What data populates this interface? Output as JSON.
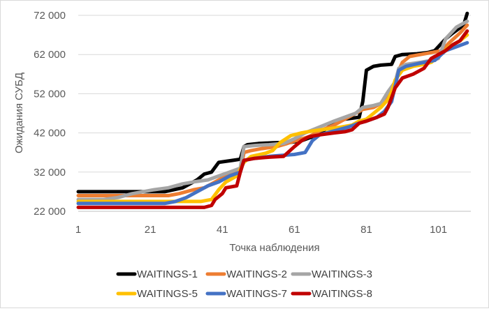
{
  "chart_data": {
    "type": "line",
    "title": "",
    "xlabel": "Точка наблюдения",
    "ylabel": "Ожидания СУБД",
    "ylim": [
      22000,
      72000
    ],
    "xlim": [
      1,
      110
    ],
    "yticks": [
      {
        "value": 22000,
        "label": "22 000"
      },
      {
        "value": 32000,
        "label": "32 000"
      },
      {
        "value": 42000,
        "label": "42 000"
      },
      {
        "value": 52000,
        "label": "52 000"
      },
      {
        "value": 62000,
        "label": "62 000"
      },
      {
        "value": 72000,
        "label": "72 000"
      }
    ],
    "xticks": [
      {
        "value": 1,
        "label": "1"
      },
      {
        "value": 21,
        "label": "21"
      },
      {
        "value": 41,
        "label": "41"
      },
      {
        "value": 61,
        "label": "61"
      },
      {
        "value": 81,
        "label": "81"
      },
      {
        "value": 101,
        "label": "101"
      }
    ],
    "grid": "horizontal",
    "legend_position": "bottom",
    "series": [
      {
        "name": "WAITINGS-1",
        "color": "#000000",
        "points": [
          [
            1,
            27000
          ],
          [
            25,
            27000
          ],
          [
            28,
            27600
          ],
          [
            30,
            28000
          ],
          [
            34,
            30000
          ],
          [
            36,
            31500
          ],
          [
            38,
            32000
          ],
          [
            40,
            34500
          ],
          [
            44,
            35000
          ],
          [
            46,
            35300
          ],
          [
            47,
            38500
          ],
          [
            48,
            39000
          ],
          [
            51,
            39300
          ],
          [
            55,
            39500
          ],
          [
            60,
            39600
          ],
          [
            63,
            40000
          ],
          [
            66,
            41000
          ],
          [
            69,
            42500
          ],
          [
            72,
            44500
          ],
          [
            75,
            45500
          ],
          [
            79,
            46000
          ],
          [
            80,
            50000
          ],
          [
            81,
            58000
          ],
          [
            83,
            59000
          ],
          [
            85,
            59300
          ],
          [
            88,
            59500
          ],
          [
            89,
            61500
          ],
          [
            91,
            62000
          ],
          [
            95,
            62200
          ],
          [
            98,
            62500
          ],
          [
            100,
            63000
          ],
          [
            103,
            66000
          ],
          [
            105,
            67500
          ],
          [
            108,
            69500
          ],
          [
            109,
            72500
          ]
        ]
      },
      {
        "name": "WAITINGS-2",
        "color": "#ED7D31",
        "points": [
          [
            1,
            26000
          ],
          [
            26,
            26000
          ],
          [
            29,
            26500
          ],
          [
            33,
            27500
          ],
          [
            36,
            28000
          ],
          [
            39,
            29500
          ],
          [
            42,
            31000
          ],
          [
            46,
            32000
          ],
          [
            47,
            37000
          ],
          [
            49,
            37500
          ],
          [
            52,
            38000
          ],
          [
            56,
            38500
          ],
          [
            59,
            39300
          ],
          [
            62,
            40200
          ],
          [
            65,
            41000
          ],
          [
            68,
            42500
          ],
          [
            72,
            44000
          ],
          [
            75,
            45500
          ],
          [
            78,
            47000
          ],
          [
            80,
            48000
          ],
          [
            83,
            48500
          ],
          [
            85,
            49500
          ],
          [
            87,
            52000
          ],
          [
            89,
            54500
          ],
          [
            90,
            58000
          ],
          [
            91,
            60000
          ],
          [
            93,
            61500
          ],
          [
            96,
            62000
          ],
          [
            99,
            62500
          ],
          [
            102,
            63000
          ],
          [
            104,
            65000
          ],
          [
            107,
            67500
          ],
          [
            109,
            69500
          ]
        ]
      },
      {
        "name": "WAITINGS-3",
        "color": "#A5A5A5",
        "points": [
          [
            1,
            25000
          ],
          [
            8,
            25000
          ],
          [
            12,
            25500
          ],
          [
            16,
            26500
          ],
          [
            19,
            27000
          ],
          [
            22,
            27500
          ],
          [
            26,
            28000
          ],
          [
            30,
            29000
          ],
          [
            33,
            29500
          ],
          [
            37,
            30000
          ],
          [
            40,
            31000
          ],
          [
            43,
            32000
          ],
          [
            46,
            33000
          ],
          [
            47,
            38500
          ],
          [
            50,
            38800
          ],
          [
            54,
            39000
          ],
          [
            58,
            39300
          ],
          [
            61,
            40500
          ],
          [
            64,
            42000
          ],
          [
            68,
            43500
          ],
          [
            72,
            45000
          ],
          [
            75,
            46000
          ],
          [
            78,
            47000
          ],
          [
            80,
            48500
          ],
          [
            83,
            49000
          ],
          [
            85,
            49500
          ],
          [
            87,
            52500
          ],
          [
            89,
            55000
          ],
          [
            90,
            58500
          ],
          [
            92,
            59500
          ],
          [
            96,
            60000
          ],
          [
            99,
            60500
          ],
          [
            101,
            61000
          ],
          [
            103,
            66000
          ],
          [
            106,
            69000
          ],
          [
            109,
            70500
          ]
        ]
      },
      {
        "name": "WAITINGS-5",
        "color": "#FFC000",
        "points": [
          [
            1,
            24500
          ],
          [
            35,
            24500
          ],
          [
            38,
            25000
          ],
          [
            40,
            27500
          ],
          [
            42,
            29500
          ],
          [
            45,
            31000
          ],
          [
            47,
            34500
          ],
          [
            49,
            36000
          ],
          [
            53,
            36800
          ],
          [
            55,
            37500
          ],
          [
            57,
            39500
          ],
          [
            60,
            41300
          ],
          [
            63,
            42000
          ],
          [
            66,
            42500
          ],
          [
            70,
            43000
          ],
          [
            74,
            43500
          ],
          [
            77,
            44000
          ],
          [
            79,
            45000
          ],
          [
            81,
            45500
          ],
          [
            83,
            47000
          ],
          [
            85,
            48500
          ],
          [
            87,
            50500
          ],
          [
            88,
            52500
          ],
          [
            89,
            55500
          ],
          [
            91,
            58000
          ],
          [
            94,
            59000
          ],
          [
            97,
            59500
          ],
          [
            99,
            60000
          ],
          [
            101,
            61500
          ],
          [
            104,
            64000
          ],
          [
            107,
            65500
          ],
          [
            109,
            67000
          ]
        ]
      },
      {
        "name": "WAITINGS-7",
        "color": "#4472C4",
        "points": [
          [
            1,
            24000
          ],
          [
            25,
            24000
          ],
          [
            28,
            24500
          ],
          [
            31,
            25500
          ],
          [
            34,
            27000
          ],
          [
            37,
            28500
          ],
          [
            40,
            29500
          ],
          [
            43,
            31000
          ],
          [
            46,
            32000
          ],
          [
            47,
            35000
          ],
          [
            50,
            35500
          ],
          [
            54,
            36000
          ],
          [
            58,
            36300
          ],
          [
            61,
            36500
          ],
          [
            64,
            37000
          ],
          [
            66,
            40000
          ],
          [
            68,
            41500
          ],
          [
            72,
            42500
          ],
          [
            76,
            43500
          ],
          [
            79,
            44500
          ],
          [
            81,
            45000
          ],
          [
            84,
            46000
          ],
          [
            86,
            47500
          ],
          [
            88,
            50000
          ],
          [
            89,
            54000
          ],
          [
            90,
            58000
          ],
          [
            92,
            59000
          ],
          [
            96,
            59800
          ],
          [
            100,
            60500
          ],
          [
            103,
            63000
          ],
          [
            106,
            64000
          ],
          [
            109,
            65000
          ]
        ]
      },
      {
        "name": "WAITINGS-8",
        "color": "#C00000",
        "points": [
          [
            1,
            23000
          ],
          [
            36,
            23000
          ],
          [
            38,
            23500
          ],
          [
            39,
            25000
          ],
          [
            41,
            26500
          ],
          [
            42,
            28000
          ],
          [
            45,
            28500
          ],
          [
            46,
            32000
          ],
          [
            47,
            35000
          ],
          [
            50,
            35500
          ],
          [
            54,
            35800
          ],
          [
            58,
            36000
          ],
          [
            61,
            38500
          ],
          [
            63,
            40000
          ],
          [
            65,
            41000
          ],
          [
            68,
            41500
          ],
          [
            72,
            42000
          ],
          [
            75,
            42300
          ],
          [
            77,
            42800
          ],
          [
            79,
            44500
          ],
          [
            81,
            45000
          ],
          [
            84,
            46000
          ],
          [
            86,
            46800
          ],
          [
            87,
            48500
          ],
          [
            88,
            51000
          ],
          [
            89,
            53500
          ],
          [
            91,
            56000
          ],
          [
            94,
            57000
          ],
          [
            97,
            58500
          ],
          [
            99,
            61000
          ],
          [
            101,
            62000
          ],
          [
            103,
            63000
          ],
          [
            105,
            64500
          ],
          [
            107,
            65500
          ],
          [
            109,
            68000
          ]
        ]
      }
    ]
  }
}
